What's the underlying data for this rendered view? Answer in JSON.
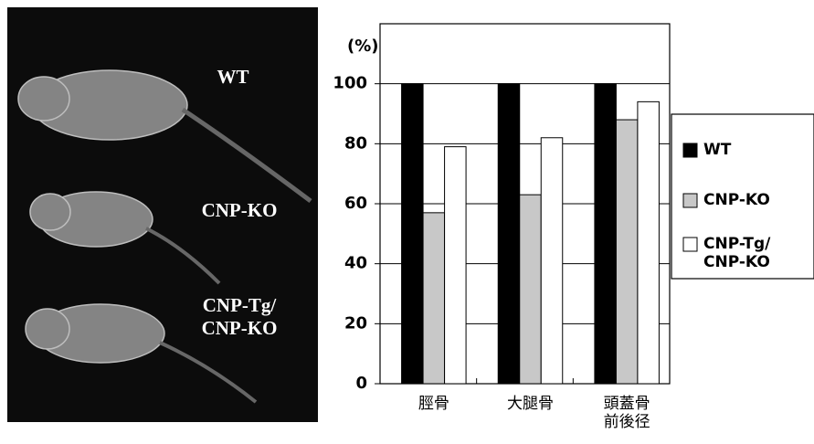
{
  "image_panel": {
    "labels": [
      "WT",
      "CNP-KO",
      "CNP-Tg/\nCNP-KO"
    ]
  },
  "chart_data": {
    "type": "bar",
    "ylabel": "(%)",
    "categories": [
      "脛骨",
      "大腿骨",
      "頭蓋骨\n前後径"
    ],
    "series": [
      {
        "name": "WT",
        "color": "#000000",
        "values": [
          100,
          100,
          100
        ]
      },
      {
        "name": "CNP-KO",
        "color": "#c8c8c8",
        "values": [
          57,
          63,
          88
        ]
      },
      {
        "name": "CNP-Tg/\nCNP-KO",
        "color": "#ffffff",
        "values": [
          79,
          82,
          94
        ]
      }
    ],
    "ylim": [
      0,
      120
    ],
    "yticks": [
      0,
      20,
      40,
      60,
      80,
      100
    ],
    "grid": true
  }
}
